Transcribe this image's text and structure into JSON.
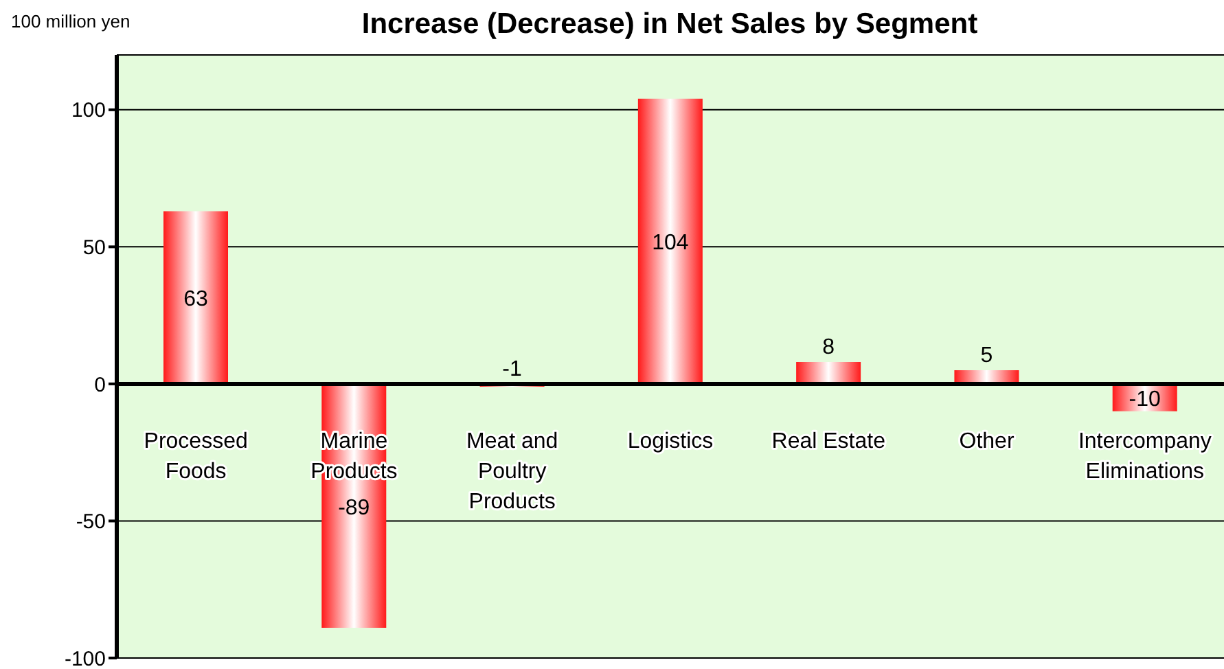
{
  "chart_data": {
    "type": "bar",
    "title": "Increase (Decrease) in Net Sales by Segment",
    "ylabel": "100 million yen",
    "categories": [
      "Processed Foods",
      "Marine Products",
      "Meat and Poultry Products",
      "Logistics",
      "Real Estate",
      "Other",
      "Intercompany Eliminations"
    ],
    "values": [
      63,
      -89,
      -1,
      104,
      8,
      5,
      -10
    ],
    "color": "#ff1a1a",
    "ylim": [
      -100,
      120
    ],
    "yticks": [
      -100,
      -50,
      0,
      50,
      100
    ],
    "grid": "y",
    "data_labels": true
  }
}
